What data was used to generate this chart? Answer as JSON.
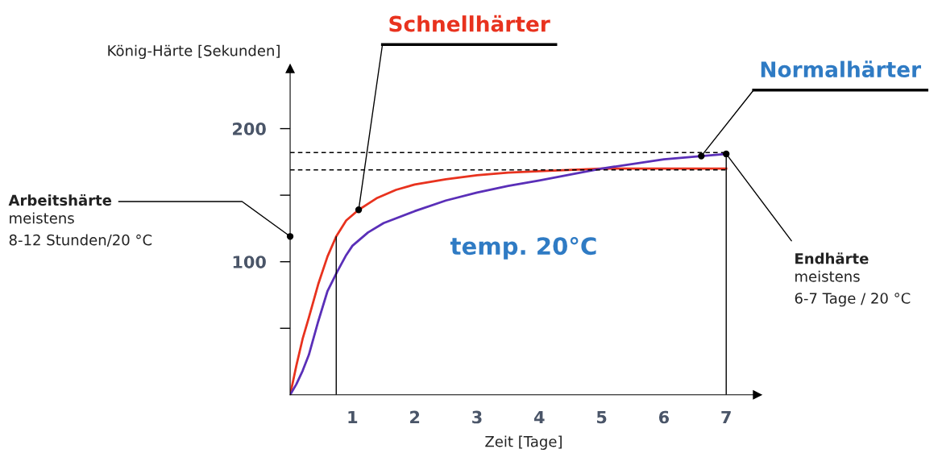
{
  "chart_data": {
    "type": "line",
    "xlabel": "Zeit [Tage]",
    "ylabel": "König-Härte [Sekunden]",
    "xlim": [
      0,
      7.5
    ],
    "ylim": [
      0,
      245
    ],
    "xticks": [
      1,
      2,
      3,
      4,
      5,
      6,
      7
    ],
    "yticks": [
      {
        "value": 50,
        "label": null
      },
      100,
      {
        "value": 150,
        "label": null
      },
      200
    ],
    "grid": false,
    "marker": "none",
    "line_style": "solid",
    "series": [
      {
        "name": "Schnellhärter",
        "color": "#e8321e",
        "x": [
          0,
          0.1,
          0.2,
          0.3,
          0.45,
          0.6,
          0.74,
          0.9,
          1.1,
          1.4,
          1.7,
          2,
          2.5,
          3,
          3.5,
          4,
          5,
          6,
          7
        ],
        "values": [
          0,
          22,
          42,
          58,
          83,
          104,
          119,
          131,
          139,
          148,
          154,
          158,
          162,
          165,
          167,
          168,
          170,
          170,
          170
        ]
      },
      {
        "name": "Normalhärter",
        "color": "#5a2fb8",
        "x": [
          0,
          0.1,
          0.2,
          0.3,
          0.45,
          0.6,
          0.75,
          0.9,
          1,
          1.25,
          1.5,
          2,
          2.5,
          3,
          3.5,
          4,
          5,
          6,
          7
        ],
        "values": [
          0,
          8,
          18,
          30,
          55,
          78,
          92,
          105,
          112,
          122,
          129,
          138,
          146,
          152,
          157,
          161,
          170,
          177,
          181
        ]
      }
    ],
    "ref_lines": [
      {
        "axis": "y",
        "value": 182,
        "line_style": "dashed",
        "color": "#000000"
      },
      {
        "axis": "y",
        "value": 169,
        "line_style": "dashed",
        "color": "#000000"
      },
      {
        "axis": "x",
        "value": 0.74,
        "line_style": "solid",
        "color": "#000000"
      },
      {
        "axis": "x",
        "value": 7,
        "line_style": "solid",
        "color": "#000000"
      }
    ],
    "annotations": [
      {
        "text": "Arbeitshärte",
        "x": 0,
        "y": 119
      },
      "meistens\n8-12 Stunden/20 °C",
      {
        "text": "Endhärte",
        "x": 7,
        "y": 181
      },
      "meistens\n6-7 Tage / 20 °C",
      "temp. 20°C"
    ]
  }
}
